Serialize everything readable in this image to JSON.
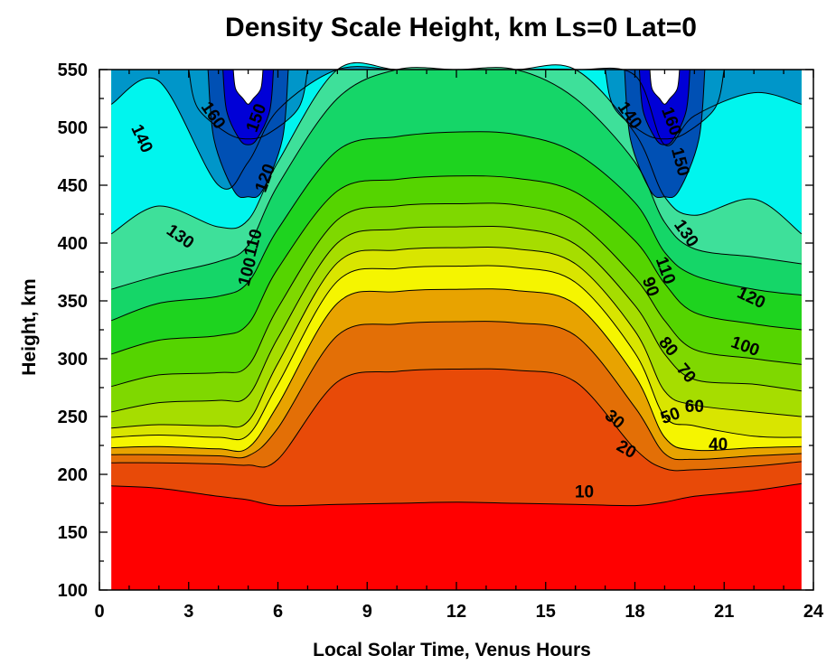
{
  "chart_data": {
    "type": "contour",
    "title": "Density Scale Height, km Ls=0 Lat=0",
    "xlabel": "Local Solar Time, Venus Hours",
    "ylabel": "Height, km",
    "xlim": [
      0,
      24
    ],
    "ylim": [
      100,
      550
    ],
    "x_ticks": [
      0,
      3,
      6,
      9,
      12,
      15,
      18,
      21,
      24
    ],
    "y_ticks": [
      100,
      150,
      200,
      250,
      300,
      350,
      400,
      450,
      500,
      550
    ],
    "x_data_range": [
      0.4,
      23.6
    ],
    "levels": [
      10,
      20,
      30,
      40,
      50,
      60,
      70,
      80,
      90,
      100,
      110,
      120,
      130,
      140,
      150,
      160
    ],
    "level_colors": [
      "#e84a08",
      "#e36f06",
      "#e8a300",
      "#f5f500",
      "#d9e500",
      "#a6dd00",
      "#7fd800",
      "#55d400",
      "#1ed31f",
      "#15d668",
      "#3ee09a",
      "#00f5ee",
      "#0096c9",
      "#0050b4",
      "#0000d7"
    ],
    "below_color": "#ff0000",
    "profile_hours": [
      0.4,
      2,
      4,
      5,
      6,
      8,
      10,
      12,
      14,
      16,
      18,
      19,
      20,
      22,
      23.6
    ],
    "contours": [
      {
        "level": 10,
        "heights": [
          190,
          188,
          181,
          178,
          173,
          174,
          175,
          176,
          175,
          174,
          173,
          176,
          181,
          186,
          192
        ]
      },
      {
        "level": 20,
        "heights": [
          210,
          210,
          209,
          208,
          213,
          280,
          289,
          291,
          290,
          280,
          222,
          205,
          204,
          207,
          211
        ]
      },
      {
        "level": 30,
        "heights": [
          217,
          217,
          216,
          216,
          240,
          320,
          330,
          332,
          331,
          320,
          258,
          218,
          213,
          216,
          218
        ]
      },
      {
        "level": 40,
        "heights": [
          223,
          224,
          222,
          223,
          260,
          348,
          358,
          360,
          359,
          347,
          285,
          232,
          221,
          223,
          224
        ]
      },
      {
        "level": 50,
        "heights": [
          232,
          234,
          232,
          234,
          278,
          367,
          378,
          380,
          379,
          366,
          305,
          250,
          242,
          233,
          232
        ]
      },
      {
        "level": 60,
        "heights": [
          240,
          243,
          242,
          246,
          296,
          383,
          394,
          396,
          395,
          382,
          324,
          272,
          260,
          254,
          250
        ]
      },
      {
        "level": 70,
        "heights": [
          254,
          262,
          264,
          268,
          318,
          400,
          412,
          414,
          413,
          399,
          346,
          304,
          282,
          278,
          272
        ]
      },
      {
        "level": 80,
        "heights": [
          276,
          286,
          288,
          294,
          344,
          420,
          432,
          434,
          433,
          419,
          370,
          333,
          308,
          300,
          295
        ]
      },
      {
        "level": 90,
        "heights": [
          304,
          316,
          320,
          330,
          378,
          445,
          455,
          458,
          456,
          444,
          402,
          365,
          340,
          330,
          325
        ]
      },
      {
        "level": 100,
        "heights": [
          333,
          348,
          354,
          366,
          412,
          480,
          492,
          496,
          494,
          478,
          435,
          392,
          372,
          360,
          355
        ]
      },
      {
        "level": 110,
        "heights": [
          360,
          372,
          384,
          398,
          450,
          525,
          550,
          550,
          550,
          525,
          470,
          418,
          395,
          388,
          382
        ]
      },
      {
        "level": 120,
        "heights": [
          408,
          432,
          414,
          420,
          470,
          550,
          550,
          550,
          550,
          550,
          495,
          440,
          424,
          438,
          408
        ]
      },
      {
        "level": 130,
        "heights": [
          520,
          540,
          450,
          470,
          515,
          550,
          550,
          550,
          550,
          550,
          545,
          485,
          510,
          530,
          520
        ]
      }
    ],
    "core_levels": [
      140,
      150,
      160,
      170
    ],
    "contour_labels": [
      {
        "text": "140",
        "x": 1.4,
        "y": 490,
        "rotate": 65
      },
      {
        "text": "160",
        "x": 3.8,
        "y": 510,
        "rotate": 55
      },
      {
        "text": "150",
        "x": 5.3,
        "y": 508,
        "rotate": -70
      },
      {
        "text": "120",
        "x": 5.6,
        "y": 456,
        "rotate": -70
      },
      {
        "text": "130",
        "x": 2.7,
        "y": 405,
        "rotate": 35
      },
      {
        "text": "110",
        "x": 5.2,
        "y": 400,
        "rotate": -75
      },
      {
        "text": "100",
        "x": 5.0,
        "y": 375,
        "rotate": -75
      },
      {
        "text": "140",
        "x": 17.8,
        "y": 510,
        "rotate": 55
      },
      {
        "text": "160",
        "x": 19.2,
        "y": 505,
        "rotate": 70
      },
      {
        "text": "150",
        "x": 19.5,
        "y": 470,
        "rotate": 75
      },
      {
        "text": "130",
        "x": 19.7,
        "y": 408,
        "rotate": 55
      },
      {
        "text": "110",
        "x": 19.0,
        "y": 376,
        "rotate": 70
      },
      {
        "text": "90",
        "x": 18.5,
        "y": 362,
        "rotate": 70
      },
      {
        "text": "120",
        "x": 21.9,
        "y": 352,
        "rotate": 25
      },
      {
        "text": "100",
        "x": 21.7,
        "y": 310,
        "rotate": 20
      },
      {
        "text": "80",
        "x": 19.1,
        "y": 310,
        "rotate": 50
      },
      {
        "text": "70",
        "x": 19.7,
        "y": 287,
        "rotate": 50
      },
      {
        "text": "60",
        "x": 20.0,
        "y": 258,
        "rotate": 0
      },
      {
        "text": "50",
        "x": 19.2,
        "y": 250,
        "rotate": -20
      },
      {
        "text": "40",
        "x": 20.8,
        "y": 225,
        "rotate": 0
      },
      {
        "text": "30",
        "x": 17.3,
        "y": 247,
        "rotate": 40
      },
      {
        "text": "20",
        "x": 17.7,
        "y": 221,
        "rotate": 30
      },
      {
        "text": "10",
        "x": 16.3,
        "y": 184,
        "rotate": 0
      }
    ]
  }
}
